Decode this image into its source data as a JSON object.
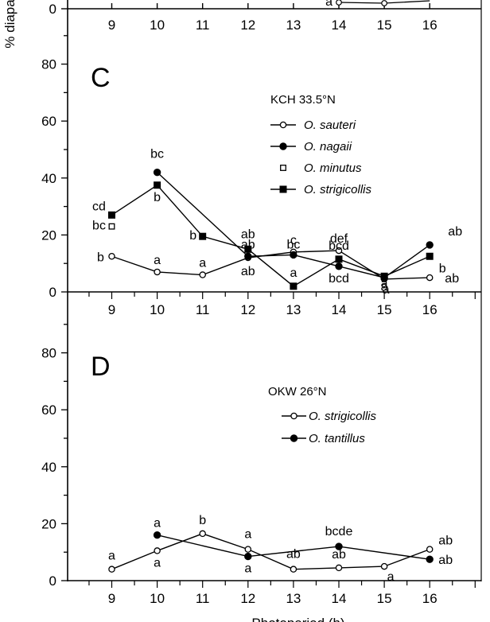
{
  "ylabel": "% diapa",
  "xlabel": "Photoperiod (h)",
  "top_fragment": {
    "x_ticks": [
      "9",
      "10",
      "11",
      "12",
      "13",
      "14",
      "15",
      "16"
    ],
    "y_tick": "0",
    "annotation": "a"
  },
  "chart_data": [
    {
      "type": "line",
      "panel": "C",
      "legend_title": "KCH 33.5°N",
      "legend_position": "top-right",
      "xlim": [
        8,
        17
      ],
      "ylim": [
        0,
        100
      ],
      "x_ticks": [
        9,
        10,
        11,
        12,
        13,
        14,
        15,
        16
      ],
      "y_ticks": [
        0,
        20,
        40,
        60,
        80
      ],
      "series": [
        {
          "name": "O. sauteri",
          "marker": "open-circle",
          "line": true,
          "x": [
            9,
            10,
            11,
            12,
            13,
            14,
            15,
            16
          ],
          "y": [
            12.5,
            7,
            6,
            12,
            14,
            14.5,
            4.5,
            5
          ],
          "labels": [
            "b",
            "a",
            "a",
            "ab",
            "c",
            "def",
            "a",
            "ab"
          ]
        },
        {
          "name": "O. nagaii",
          "marker": "filled-circle",
          "line": true,
          "x": [
            10,
            12,
            13,
            14,
            15,
            16
          ],
          "y": [
            42,
            12.5,
            13,
            9,
            5,
            16.5
          ],
          "labels": [
            "bc",
            "ab",
            "bc",
            "bcd",
            "a",
            "ab"
          ]
        },
        {
          "name": "O. minutus",
          "marker": "open-square",
          "line": false,
          "x": [
            9
          ],
          "y": [
            23
          ],
          "labels": [
            "bc"
          ]
        },
        {
          "name": "O. strigicollis",
          "marker": "filled-square",
          "line": true,
          "x": [
            9,
            10,
            11,
            12,
            13,
            14,
            15,
            16
          ],
          "y": [
            27,
            37.5,
            19.5,
            15,
            2,
            11.5,
            5.5,
            12.5
          ],
          "labels": [
            "cd",
            "b",
            "b",
            "ab",
            "a",
            "bcd",
            "a",
            "b"
          ]
        }
      ]
    },
    {
      "type": "line",
      "panel": "D",
      "legend_title": "OKW 26°N",
      "legend_position": "top-right",
      "xlim": [
        8,
        17
      ],
      "ylim": [
        0,
        100
      ],
      "x_ticks": [
        9,
        10,
        11,
        12,
        13,
        14,
        15,
        16
      ],
      "y_ticks": [
        0,
        20,
        40,
        60,
        80
      ],
      "series": [
        {
          "name": "O. strigicollis",
          "marker": "open-circle",
          "line": true,
          "x": [
            9,
            10,
            11,
            12,
            13,
            14,
            15,
            16
          ],
          "y": [
            4,
            10.5,
            16.5,
            11,
            4,
            4.5,
            5,
            11
          ],
          "labels": [
            "a",
            "a",
            "b",
            "a",
            "ab",
            "ab",
            "a",
            "ab"
          ]
        },
        {
          "name": "O. tantillus",
          "marker": "filled-circle",
          "line": true,
          "x": [
            10,
            12,
            14,
            16
          ],
          "y": [
            16,
            8.5,
            12,
            7.5
          ],
          "labels": [
            "a",
            "a",
            "bcde",
            "ab"
          ]
        }
      ]
    }
  ]
}
